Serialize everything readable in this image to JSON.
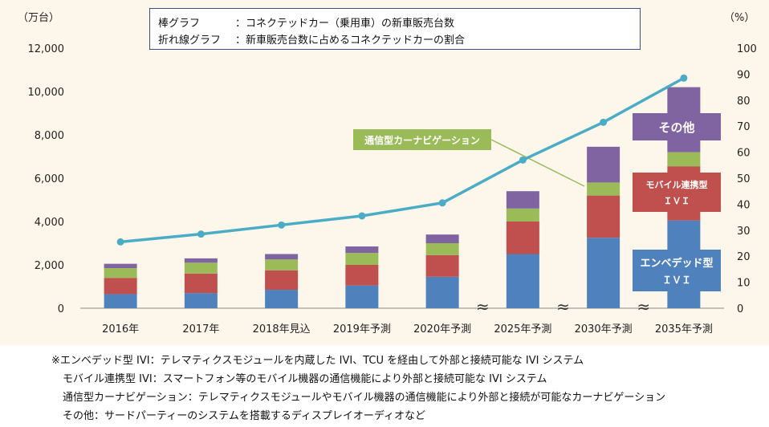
{
  "chart_data": {
    "type": "bar+line",
    "categories": [
      "2016年",
      "2017年",
      "2018年見込",
      "2019年予測",
      "2020年予測",
      "2025年予測",
      "2030年予測",
      "2035年予測"
    ],
    "left_axis": {
      "unit_label": "（万台）",
      "ylim": [
        0,
        12000
      ],
      "ticks": [
        "0",
        "2,000",
        "4,000",
        "6,000",
        "8,000",
        "10,000",
        "12,000"
      ]
    },
    "right_axis": {
      "unit_label": "（%）",
      "ylim": [
        0,
        100
      ],
      "ticks": [
        "0",
        "10",
        "20",
        "30",
        "40",
        "50",
        "60",
        "70",
        "80",
        "90",
        "100"
      ]
    },
    "stacked_series": [
      {
        "name": "エンベデッド型ＩＶＩ",
        "color": "#4f81bd",
        "values": [
          650,
          700,
          850,
          1050,
          1450,
          2500,
          3250,
          4050
        ]
      },
      {
        "name": "モバイル連携型ＩＶＩ",
        "color": "#c0504d",
        "values": [
          750,
          900,
          900,
          950,
          1000,
          1500,
          1950,
          2500
        ]
      },
      {
        "name": "通信型カーナビゲーション",
        "color": "#9bbb59",
        "values": [
          450,
          500,
          500,
          550,
          550,
          600,
          600,
          650
        ]
      },
      {
        "name": "その他",
        "color": "#8064a2",
        "values": [
          200,
          200,
          250,
          300,
          400,
          800,
          1650,
          3000
        ]
      }
    ],
    "line_series": {
      "name": "新車販売台数に占めるコネクテッドカーの割合",
      "color": "#4bacc6",
      "values": [
        25.5,
        28.5,
        32,
        35.5,
        40.5,
        57,
        71.5,
        88.5
      ]
    },
    "legend": {
      "row1_key": "棒グラフ",
      "row1_text": "：コネクテッドカー（乗用車）の新車販売台数",
      "row2_key": "折れ線グラフ",
      "row2_text": "：新車販売台数に占めるコネクテッドカーの割合"
    },
    "annotations": {
      "navi": "通信型カーナビゲーション",
      "other": "その他",
      "mobile_line1": "モバイル連携型",
      "mobile_line2": "ＩＶＩ",
      "embedded_line1": "エンベデッド型",
      "embedded_line2": "ＩＶＩ"
    },
    "axis_break": "≈"
  },
  "notes": [
    {
      "title": "※エンベデッド型 IVI",
      "text": "：テレマティクスモジュールを内蔵した IVI、TCU を経由して外部と接続可能な IVI システム"
    },
    {
      "title": "モバイル連携型 IVI",
      "text": "：スマートフォン等のモバイル機器の通信機能により外部と接続可能な IVI システム"
    },
    {
      "title": "通信型カーナビゲーション",
      "text": "：テレマティクスモジュールやモバイル機器の通信機能により外部と接続が可能なカーナビゲーション"
    },
    {
      "title": "その他",
      "text": "：サードパーティーのシステムを搭載するディスプレイオーディオなど"
    }
  ]
}
